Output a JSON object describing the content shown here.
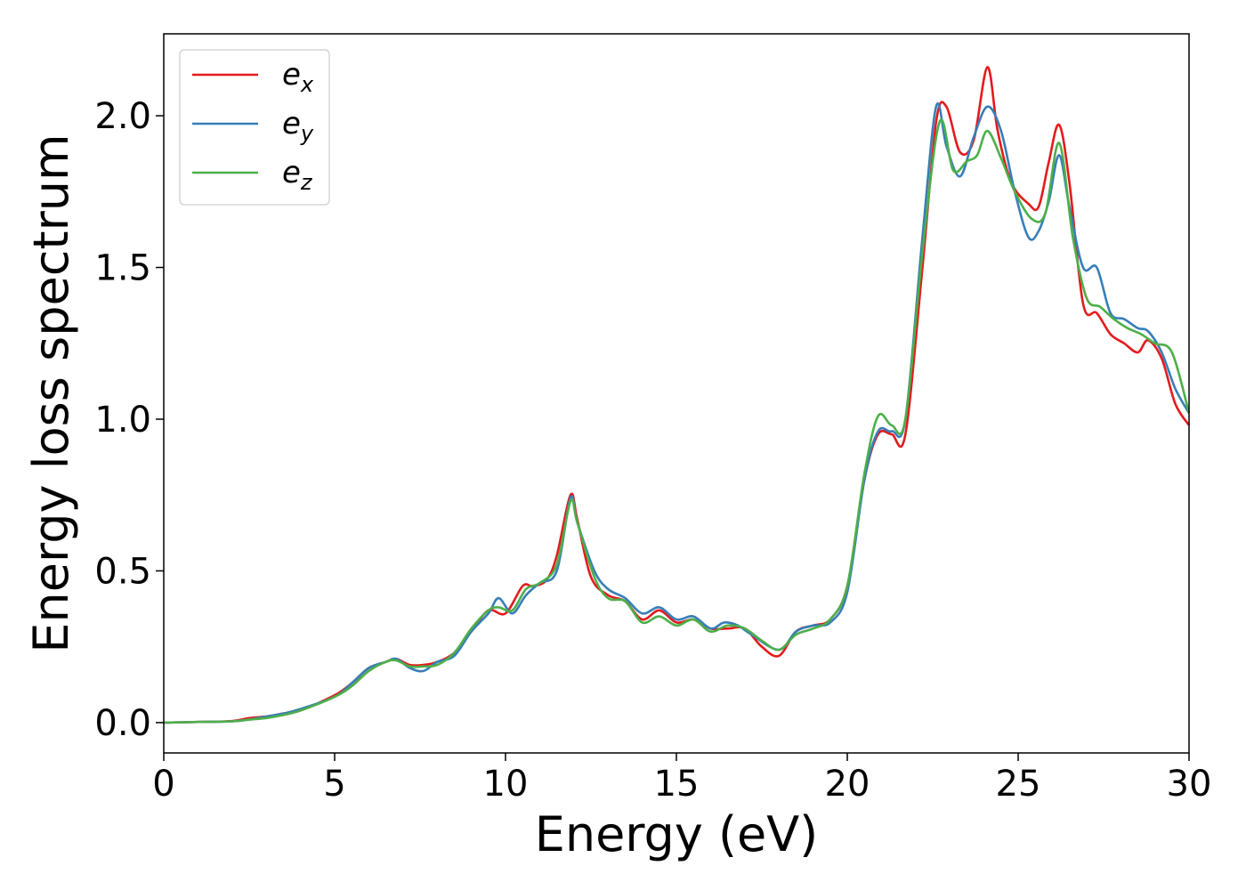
{
  "chart_data": {
    "type": "line",
    "xlabel": "Energy (eV)",
    "ylabel": "Energy loss spectrum",
    "xlim": [
      0,
      30
    ],
    "ylim": [
      -0.1,
      2.27
    ],
    "xticks": [
      0,
      5,
      10,
      15,
      20,
      25,
      30
    ],
    "xtick_labels": [
      "0",
      "5",
      "10",
      "15",
      "20",
      "25",
      "30"
    ],
    "yticks": [
      0.0,
      0.5,
      1.0,
      1.5,
      2.0
    ],
    "ytick_labels": [
      "0.0",
      "0.5",
      "1.0",
      "1.5",
      "2.0"
    ],
    "grid": false,
    "legend_position": "top-left",
    "series": [
      {
        "name": "e_x",
        "label_base": "e",
        "label_sub": "x",
        "color": "#e41a1c",
        "x": [
          0,
          1,
          2,
          2.5,
          3,
          3.5,
          4,
          5,
          5.5,
          6,
          6.5,
          6.8,
          7.2,
          7.6,
          8,
          8.5,
          9,
          9.5,
          10,
          10.5,
          10.8,
          11.2,
          11.5,
          11.9,
          12.1,
          12.5,
          13,
          13.5,
          14,
          14.5,
          15,
          15.5,
          16,
          16.5,
          17,
          17.5,
          18,
          18.5,
          19,
          19.5,
          20,
          20.5,
          20.9,
          21.3,
          21.7,
          22.2,
          22.6,
          22.9,
          23.3,
          23.7,
          24.1,
          24.4,
          24.8,
          25.3,
          25.6,
          25.9,
          26.2,
          26.5,
          26.9,
          27.3,
          27.7,
          28.1,
          28.5,
          28.8,
          29.2,
          29.6,
          30
        ],
        "y": [
          0,
          0.002,
          0.005,
          0.015,
          0.02,
          0.03,
          0.04,
          0.09,
          0.13,
          0.18,
          0.2,
          0.21,
          0.19,
          0.19,
          0.2,
          0.23,
          0.3,
          0.37,
          0.36,
          0.45,
          0.45,
          0.47,
          0.55,
          0.75,
          0.67,
          0.48,
          0.42,
          0.4,
          0.34,
          0.37,
          0.33,
          0.34,
          0.31,
          0.31,
          0.31,
          0.25,
          0.22,
          0.3,
          0.32,
          0.34,
          0.45,
          0.8,
          0.95,
          0.95,
          0.95,
          1.5,
          1.98,
          2.03,
          1.88,
          1.92,
          2.16,
          1.95,
          1.78,
          1.71,
          1.7,
          1.85,
          1.97,
          1.78,
          1.38,
          1.35,
          1.28,
          1.25,
          1.22,
          1.26,
          1.2,
          1.05,
          0.98
        ]
      },
      {
        "name": "e_y",
        "label_base": "e",
        "label_sub": "y",
        "color": "#377eb8",
        "x": [
          0,
          1,
          2,
          2.5,
          3,
          3.5,
          4,
          5,
          5.5,
          6,
          6.5,
          6.8,
          7.2,
          7.6,
          8,
          8.5,
          9,
          9.5,
          9.8,
          10.2,
          10.6,
          11,
          11.5,
          11.9,
          12.1,
          12.6,
          13,
          13.5,
          14,
          14.5,
          15,
          15.5,
          16,
          16.4,
          16.8,
          17.2,
          18,
          18.5,
          19,
          19.5,
          20,
          20.5,
          20.9,
          21.3,
          21.7,
          22.2,
          22.6,
          22.9,
          23.3,
          23.7,
          24.1,
          24.5,
          24.9,
          25.3,
          25.6,
          25.9,
          26.2,
          26.5,
          26.9,
          27.3,
          27.7,
          28.1,
          28.5,
          28.8,
          29.2,
          29.6,
          30
        ],
        "y": [
          0,
          0.002,
          0.004,
          0.01,
          0.02,
          0.03,
          0.045,
          0.085,
          0.13,
          0.18,
          0.2,
          0.21,
          0.18,
          0.17,
          0.2,
          0.22,
          0.3,
          0.36,
          0.41,
          0.36,
          0.42,
          0.46,
          0.5,
          0.74,
          0.66,
          0.5,
          0.44,
          0.41,
          0.36,
          0.38,
          0.34,
          0.35,
          0.31,
          0.33,
          0.32,
          0.29,
          0.24,
          0.3,
          0.32,
          0.33,
          0.43,
          0.8,
          0.96,
          0.96,
          1.0,
          1.6,
          2.03,
          1.9,
          1.8,
          1.93,
          2.03,
          1.95,
          1.75,
          1.6,
          1.62,
          1.72,
          1.87,
          1.7,
          1.5,
          1.5,
          1.35,
          1.33,
          1.3,
          1.29,
          1.22,
          1.1,
          1.02
        ]
      },
      {
        "name": "e_z",
        "label_base": "e",
        "label_sub": "z",
        "color": "#4daf4a",
        "x": [
          0,
          1,
          2,
          2.5,
          3,
          3.5,
          4,
          5,
          5.5,
          6,
          6.5,
          6.8,
          7.2,
          7.6,
          8,
          8.5,
          9,
          9.5,
          9.8,
          10.2,
          10.6,
          11,
          11.5,
          11.9,
          12.1,
          12.6,
          13,
          13.5,
          14,
          14.5,
          15,
          15.5,
          16,
          16.5,
          17,
          17.5,
          18,
          18.5,
          19,
          19.5,
          20,
          20.5,
          20.9,
          21.3,
          21.7,
          22.2,
          22.7,
          23.1,
          23.5,
          23.8,
          24.1,
          24.5,
          24.9,
          25.4,
          25.8,
          26.2,
          26.6,
          27,
          27.4,
          27.8,
          28.2,
          28.6,
          29,
          29.5,
          30
        ],
        "y": [
          0,
          0.002,
          0.004,
          0.01,
          0.015,
          0.025,
          0.04,
          0.085,
          0.12,
          0.17,
          0.2,
          0.205,
          0.185,
          0.185,
          0.19,
          0.23,
          0.31,
          0.37,
          0.38,
          0.37,
          0.44,
          0.46,
          0.52,
          0.73,
          0.66,
          0.48,
          0.41,
          0.4,
          0.33,
          0.35,
          0.32,
          0.34,
          0.3,
          0.32,
          0.31,
          0.27,
          0.24,
          0.29,
          0.31,
          0.34,
          0.45,
          0.82,
          1.01,
          0.98,
          1.0,
          1.55,
          1.98,
          1.82,
          1.85,
          1.87,
          1.95,
          1.86,
          1.75,
          1.66,
          1.68,
          1.91,
          1.6,
          1.4,
          1.37,
          1.33,
          1.3,
          1.28,
          1.25,
          1.22,
          1.02
        ]
      }
    ]
  }
}
